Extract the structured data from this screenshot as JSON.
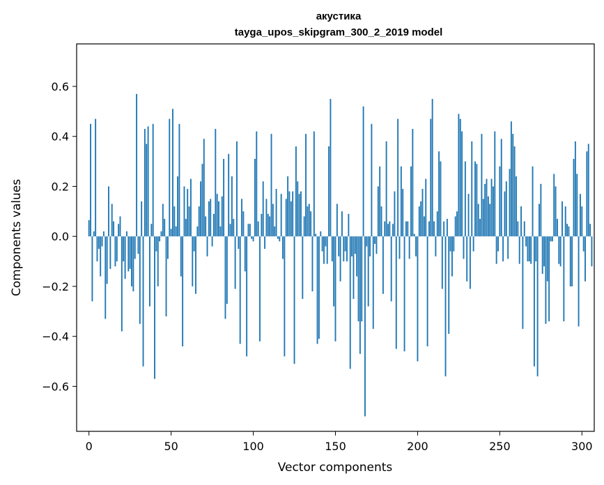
{
  "chart_data": {
    "type": "bar",
    "title": "акустика",
    "subtitle": "tayga_upos_skipgram_300_2_2019 model",
    "xlabel": "Vector components",
    "ylabel": "Components values",
    "xlim": [
      -7.5,
      307.5
    ],
    "ylim": [
      -0.78,
      0.77
    ],
    "xticks": [
      0,
      50,
      100,
      150,
      200,
      250,
      300
    ],
    "xtick_labels": [
      "0",
      "50",
      "100",
      "150",
      "200",
      "250",
      "300"
    ],
    "yticks": [
      -0.6,
      -0.4,
      -0.2,
      0.0,
      0.2,
      0.4,
      0.6
    ],
    "ytick_labels": [
      "−0.6",
      "−0.4",
      "−0.2",
      "0.0",
      "0.2",
      "0.4",
      "0.6"
    ],
    "grid": false,
    "bar_color": "#1f77b4",
    "values": [
      0.065,
      0.45,
      -0.26,
      0.02,
      0.47,
      -0.1,
      -0.05,
      -0.16,
      -0.04,
      0.02,
      -0.33,
      -0.19,
      0.2,
      -0.13,
      0.13,
      0.06,
      -0.12,
      -0.1,
      0.05,
      0.08,
      -0.38,
      -0.1,
      -0.17,
      0.02,
      -0.14,
      -0.13,
      -0.2,
      -0.22,
      -0.09,
      0.57,
      -0.07,
      -0.35,
      0.14,
      -0.52,
      0.43,
      0.37,
      0.44,
      -0.28,
      0.05,
      0.45,
      -0.57,
      -0.06,
      -0.2,
      -0.02,
      0.02,
      0.13,
      0.07,
      -0.32,
      -0.09,
      0.47,
      0.03,
      0.51,
      0.12,
      0.04,
      0.24,
      0.45,
      -0.16,
      -0.44,
      0.2,
      0.07,
      0.19,
      0.12,
      0.23,
      -0.2,
      -0.06,
      -0.23,
      0.04,
      0.12,
      0.22,
      0.29,
      0.39,
      0.08,
      -0.08,
      0.14,
      0.15,
      -0.04,
      0.09,
      0.43,
      0.17,
      0.14,
      0.04,
      0.16,
      0.31,
      -0.33,
      -0.27,
      0.33,
      0.05,
      0.24,
      0.07,
      -0.21,
      0.38,
      -0.05,
      -0.43,
      0.15,
      0.1,
      -0.14,
      -0.48,
      0.05,
      0.05,
      -0.01,
      -0.02,
      0.31,
      0.42,
      0.06,
      -0.42,
      0.09,
      0.22,
      -0.05,
      0.15,
      0.09,
      0.08,
      0.41,
      0.13,
      0.04,
      0.19,
      -0.01,
      -0.02,
      0.17,
      -0.09,
      -0.48,
      0.15,
      0.24,
      0.18,
      0.14,
      0.18,
      -0.51,
      0.36,
      0.22,
      0.17,
      0.18,
      -0.25,
      0.08,
      0.41,
      0.12,
      0.13,
      0.1,
      -0.22,
      0.42,
      0.01,
      -0.43,
      -0.41,
      0.02,
      -0.06,
      -0.11,
      -0.04,
      -0.11,
      0.36,
      0.55,
      -0.1,
      -0.28,
      -0.42,
      0.13,
      -0.08,
      -0.18,
      0.1,
      -0.1,
      -0.06,
      -0.1,
      0.09,
      -0.53,
      -0.08,
      -0.25,
      -0.07,
      -0.16,
      -0.34,
      -0.47,
      -0.34,
      0.52,
      -0.72,
      -0.04,
      -0.28,
      -0.08,
      0.45,
      -0.37,
      -0.03,
      -0.07,
      0.2,
      0.28,
      0.12,
      -0.23,
      0.06,
      0.38,
      0.05,
      0.06,
      -0.26,
      0.05,
      0.18,
      -0.45,
      0.47,
      -0.09,
      0.28,
      0.19,
      -0.46,
      0.06,
      0.06,
      -0.09,
      0.28,
      0.43,
      0.01,
      -0.08,
      -0.5,
      0.12,
      0.14,
      0.19,
      0.08,
      0.23,
      -0.44,
      0.06,
      0.47,
      0.55,
      0.06,
      -0.08,
      0.1,
      0.34,
      0.3,
      -0.21,
      0.06,
      -0.56,
      0.07,
      -0.39,
      -0.06,
      -0.16,
      -0.06,
      0.08,
      0.1,
      0.49,
      0.47,
      0.42,
      -0.09,
      0.3,
      -0.18,
      0.17,
      -0.21,
      0.38,
      -0.06,
      0.3,
      0.29,
      0.13,
      0.07,
      0.41,
      0.15,
      0.21,
      0.23,
      0.16,
      0.13,
      0.23,
      0.2,
      0.42,
      -0.11,
      -0.06,
      0.28,
      0.39,
      -0.1,
      0.18,
      0.22,
      -0.09,
      0.27,
      0.46,
      0.41,
      0.36,
      0.24,
      0.06,
      -0.11,
      0.12,
      -0.37,
      0.06,
      -0.04,
      -0.1,
      -0.1,
      -0.11,
      0.28,
      -0.52,
      -0.1,
      -0.56,
      0.13,
      0.21,
      -0.15,
      -0.12,
      -0.35,
      -0.18,
      -0.34,
      -0.02,
      -0.02,
      0.25,
      0.2,
      0.07,
      -0.11,
      -0.12,
      0.14,
      -0.34,
      0.12,
      0.05,
      0.04,
      -0.2,
      -0.2,
      0.31,
      0.38,
      0.25,
      -0.36,
      0.17,
      0.12,
      -0.06,
      -0.18,
      0.34,
      0.37,
      0.05,
      -0.12
    ]
  }
}
